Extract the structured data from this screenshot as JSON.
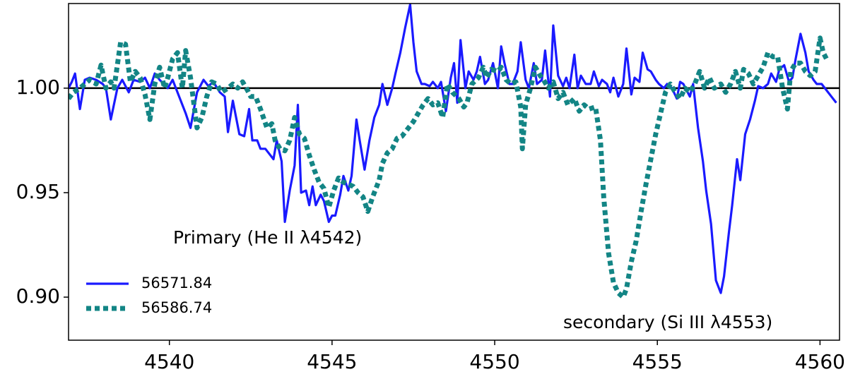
{
  "chart_data": {
    "type": "line",
    "annotations": [
      "Primary (He II λ4542)",
      "secondary (Si III λ4553)"
    ],
    "xlim": [
      4536.9,
      4560.6
    ],
    "ylim": [
      0.8794,
      1.0405
    ],
    "xticks": [
      4540,
      4545,
      4550,
      4555,
      4560
    ],
    "yticks": [
      {
        "value": 0.9,
        "label": "0.90"
      },
      {
        "value": 0.95,
        "label": "0.95"
      },
      {
        "value": 1,
        "label": "1.00"
      }
    ],
    "hline": 1,
    "legend": "lower left",
    "series": [
      {
        "name": "56571.84",
        "color": "#1a1aff",
        "style": "solid",
        "x": [
          4536.9,
          4537.0,
          4537.1,
          4537.25,
          4537.4,
          4537.55,
          4537.75,
          4537.95,
          4538.05,
          4538.2,
          4538.4,
          4538.55,
          4538.75,
          4538.9,
          4539.1,
          4539.25,
          4539.4,
          4539.55,
          4539.7,
          4539.95,
          4540.1,
          4540.3,
          4540.5,
          4540.65,
          4540.85,
          4541.05,
          4541.2,
          4541.35,
          4541.55,
          4541.7,
          4541.8,
          4541.95,
          4542.15,
          4542.3,
          4542.45,
          4542.55,
          4542.7,
          4542.8,
          4542.95,
          4543.1,
          4543.2,
          4543.3,
          4543.45,
          4543.55,
          4543.7,
          4543.85,
          4543.95,
          4544.05,
          4544.2,
          4544.3,
          4544.4,
          4544.5,
          4544.65,
          4544.75,
          4544.9,
          4545.0,
          4545.1,
          4545.25,
          4545.35,
          4545.5,
          4545.6,
          4545.75,
          4545.85,
          4546.0,
          4546.15,
          4546.3,
          4546.45,
          4546.55,
          4546.7,
          4546.85,
          4546.95,
          4547.1,
          4547.25,
          4547.4,
          4547.5,
          4547.6,
          4547.75,
          4547.85,
          4548.0,
          4548.1,
          4548.25,
          4548.35,
          4548.5,
          4548.65,
          4548.75,
          4548.85,
          4548.95,
          4549.1,
          4549.2,
          4549.35,
          4549.45,
          4549.55,
          4549.7,
          4549.8,
          4549.95,
          4550.1,
          4550.2,
          4550.3,
          4550.45,
          4550.55,
          4550.7,
          4550.8,
          4550.95,
          4551.05,
          4551.2,
          4551.3,
          4551.45,
          4551.55,
          4551.7,
          4551.8,
          4551.95,
          4552.1,
          4552.2,
          4552.3,
          4552.45,
          4552.55,
          4552.65,
          4552.8,
          4552.95,
          4553.05,
          4553.2,
          4553.3,
          4553.45,
          4553.55,
          4553.65,
          4553.8,
          4553.95,
          4554.05,
          4554.2,
          4554.3,
          4554.45,
          4554.55,
          4554.7,
          4554.8,
          4554.95,
          4555.05,
          4555.2,
          4555.3,
          4555.45,
          4555.6,
          4555.7,
          4555.8,
          4556.0,
          4556.1,
          4556.25,
          4556.4,
          4556.5,
          4556.65,
          4556.8,
          4556.95,
          4557.05,
          4557.2,
          4557.3,
          4557.45,
          4557.55,
          4557.7,
          4557.85,
          4558.0,
          4558.1,
          4558.25,
          4558.4,
          4558.5,
          4558.65,
          4558.75,
          4558.9,
          4559.05,
          4559.15,
          4559.25,
          4559.4,
          4559.55,
          4559.65,
          4559.8,
          4559.9,
          4560.05,
          4560.2,
          4560.35,
          4560.5
        ],
        "values": [
          1.0,
          1.003,
          1.007,
          0.99,
          1.004,
          1.005,
          1.004,
          1.002,
          1.0,
          0.985,
          1.0,
          1.004,
          0.998,
          1.004,
          1.003,
          1.005,
          1.0,
          1.007,
          1.004,
          1.0,
          1.004,
          0.996,
          0.988,
          0.981,
          0.998,
          1.004,
          1.001,
          1.003,
          0.998,
          0.996,
          0.979,
          0.994,
          0.978,
          0.977,
          0.99,
          0.975,
          0.975,
          0.971,
          0.971,
          0.968,
          0.966,
          0.975,
          0.965,
          0.936,
          0.951,
          0.963,
          0.992,
          0.95,
          0.951,
          0.944,
          0.953,
          0.944,
          0.949,
          0.946,
          0.936,
          0.939,
          0.939,
          0.949,
          0.958,
          0.951,
          0.958,
          0.985,
          0.975,
          0.961,
          0.975,
          0.986,
          0.992,
          1.002,
          0.992,
          1.0,
          1.007,
          1.017,
          1.029,
          1.04,
          1.022,
          1.008,
          1.002,
          1.002,
          1.001,
          1.003,
          1.0,
          1.003,
          0.989,
          1.005,
          1.012,
          0.993,
          1.023,
          1.0,
          1.008,
          1.004,
          1.008,
          1.015,
          1.002,
          1.004,
          1.012,
          1.0,
          1.02,
          1.012,
          1.002,
          1.002,
          1.008,
          1.022,
          1.004,
          1.0,
          1.012,
          1.002,
          1.004,
          1.018,
          0.996,
          1.03,
          1.006,
          1.001,
          1.005,
          1.0,
          1.016,
          1.0,
          1.006,
          1.002,
          1.002,
          1.008,
          1.001,
          1.004,
          1.002,
          0.998,
          1.005,
          0.996,
          1.002,
          1.019,
          0.997,
          1.005,
          1.003,
          1.017,
          1.009,
          1.008,
          1.004,
          1.002,
          1.0,
          1.002,
          1.0,
          0.995,
          1.003,
          1.002,
          0.996,
          1.002,
          0.981,
          0.965,
          0.951,
          0.935,
          0.908,
          0.902,
          0.91,
          0.931,
          0.944,
          0.966,
          0.956,
          0.978,
          0.985,
          0.994,
          1.001,
          1.0,
          1.002,
          1.007,
          1.003,
          1.009,
          1.011,
          1.003,
          1.005,
          1.014,
          1.026,
          1.017,
          1.008,
          1.004,
          1.002,
          1.002,
          0.999,
          0.996,
          0.993
        ]
      },
      {
        "name": "56586.74",
        "color": "#138585",
        "style": "dotted",
        "x": [
          4536.9,
          4537.05,
          4537.25,
          4537.4,
          4537.55,
          4537.75,
          4537.9,
          4538.05,
          4538.2,
          4538.3,
          4538.5,
          4538.65,
          4538.8,
          4538.95,
          4539.1,
          4539.25,
          4539.4,
          4539.55,
          4539.7,
          4539.85,
          4539.95,
          4540.1,
          4540.25,
          4540.4,
          4540.5,
          4540.65,
          4540.85,
          4541.0,
          4541.15,
          4541.3,
          4541.45,
          4541.6,
          4541.8,
          4541.95,
          4542.1,
          4542.25,
          4542.4,
          4542.5,
          4542.65,
          4542.8,
          4543.0,
          4543.15,
          4543.25,
          4543.4,
          4543.55,
          4543.7,
          4543.85,
          4544.0,
          4544.15,
          4544.3,
          4544.45,
          4544.6,
          4544.75,
          4544.9,
          4545.05,
          4545.2,
          4545.35,
          4545.5,
          4545.65,
          4545.8,
          4545.95,
          4546.1,
          4546.25,
          4546.45,
          4546.55,
          4546.7,
          4546.85,
          4547.0,
          4547.15,
          4547.35,
          4547.5,
          4547.65,
          4547.8,
          4547.95,
          4548.1,
          4548.25,
          4548.4,
          4548.55,
          4548.7,
          4548.9,
          4549.05,
          4549.15,
          4549.3,
          4549.5,
          4549.65,
          4549.75,
          4549.9,
          4550.1,
          4550.2,
          4550.35,
          4550.5,
          4550.65,
          4550.8,
          4550.85,
          4550.95,
          4551.1,
          4551.25,
          4551.4,
          4551.5,
          4551.65,
          4551.8,
          4551.95,
          4552.1,
          4552.25,
          4552.45,
          4552.6,
          4552.75,
          4552.9,
          4553.1,
          4553.25,
          4553.35,
          4553.5,
          4553.65,
          4553.8,
          4553.95,
          4554.05,
          4554.2,
          4554.35,
          4554.5,
          4554.65,
          4554.8,
          4554.95,
          4555.1,
          4555.25,
          4555.4,
          4555.55,
          4555.7,
          4555.85,
          4556.0,
          4556.15,
          4556.3,
          4556.45,
          4556.6,
          4556.75,
          4556.95,
          4557.1,
          4557.25,
          4557.4,
          4557.55,
          4557.65,
          4557.8,
          4557.95,
          4558.1,
          4558.25,
          4558.4,
          4558.55,
          4558.7,
          4558.85,
          4559.0,
          4559.1,
          4559.25,
          4559.4,
          4559.55,
          4559.7,
          4559.85,
          4560.0,
          4560.1,
          4560.2
        ],
        "values": [
          0.995,
          0.998,
          1.0,
          1.002,
          1.004,
          1.002,
          1.011,
          1.0,
          1.003,
          1.0,
          1.022,
          1.021,
          1.003,
          1.008,
          1.005,
          0.997,
          0.985,
          1.002,
          1.01,
          1.0,
          1.005,
          1.014,
          1.017,
          1.0,
          1.018,
          1.005,
          0.981,
          0.986,
          0.996,
          1.003,
          1.002,
          0.998,
          1.0,
          1.002,
          1.0,
          1.003,
          0.999,
          0.996,
          0.996,
          0.99,
          0.981,
          0.983,
          0.975,
          0.971,
          0.97,
          0.975,
          0.986,
          0.978,
          0.976,
          0.968,
          0.961,
          0.955,
          0.952,
          0.943,
          0.951,
          0.957,
          0.955,
          0.954,
          0.953,
          0.95,
          0.948,
          0.941,
          0.948,
          0.956,
          0.964,
          0.969,
          0.971,
          0.976,
          0.977,
          0.981,
          0.984,
          0.988,
          0.992,
          0.995,
          0.992,
          0.993,
          0.986,
          1.002,
          0.998,
          0.995,
          0.991,
          0.993,
          1.002,
          1.005,
          1.01,
          1.005,
          1.009,
          1.008,
          1.01,
          1.004,
          1.002,
          1.003,
          0.991,
          0.971,
          0.992,
          1.0,
          1.01,
          1.006,
          1.004,
          1.0,
          1.003,
          0.995,
          0.998,
          0.992,
          0.995,
          0.989,
          0.992,
          0.99,
          0.991,
          0.975,
          0.948,
          0.921,
          0.907,
          0.902,
          0.9,
          0.904,
          0.917,
          0.927,
          0.941,
          0.954,
          0.966,
          0.978,
          0.988,
          0.998,
          1.002,
          0.998,
          0.995,
          1.0,
          0.998,
          1.002,
          1.008,
          1.0,
          1.005,
          1.0,
          1.002,
          0.998,
          1.002,
          1.008,
          1.0,
          1.009,
          1.007,
          1.002,
          1.006,
          1.01,
          1.017,
          1.015,
          1.015,
          1.0,
          0.99,
          1.008,
          1.012,
          1.012,
          1.008,
          1.006,
          1.008,
          1.024,
          1.017,
          1.014
        ]
      }
    ]
  }
}
